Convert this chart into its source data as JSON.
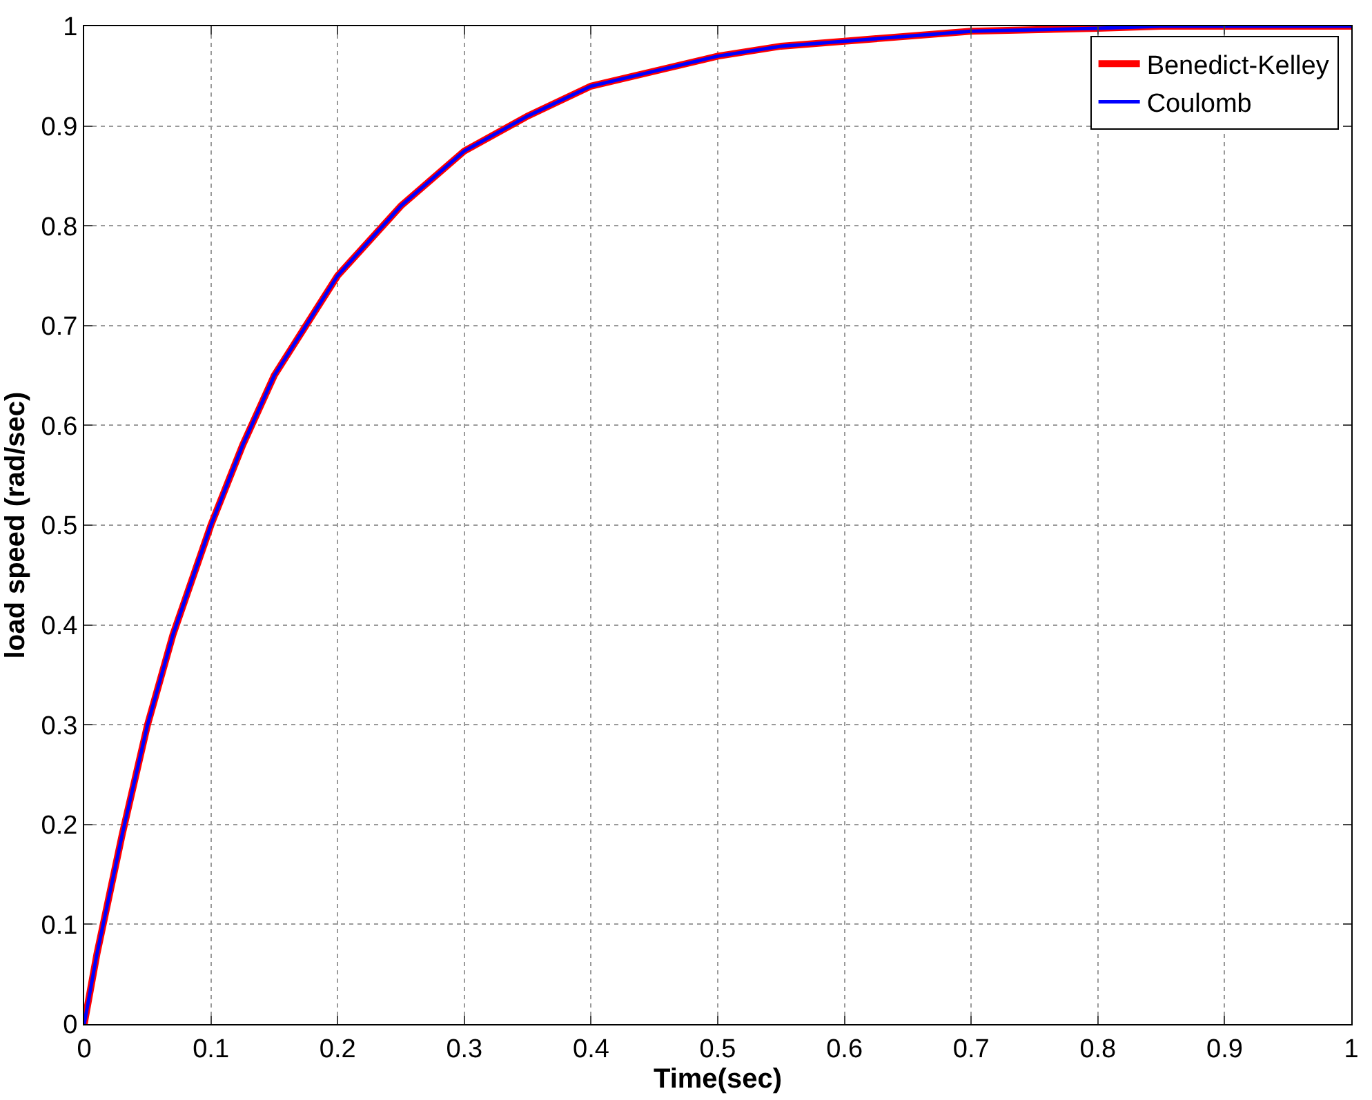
{
  "chart_data": {
    "type": "line",
    "xlabel": "Time(sec)",
    "ylabel": "load speed (rad/sec)",
    "x": [
      0,
      0.01,
      0.02,
      0.03,
      0.05,
      0.07,
      0.1,
      0.125,
      0.15,
      0.175,
      0.2,
      0.25,
      0.3,
      0.35,
      0.4,
      0.45,
      0.5,
      0.55,
      0.6,
      0.7,
      0.8,
      0.85,
      1
    ],
    "series": [
      {
        "name": "Benedict-Kelley",
        "color": "#ff0000",
        "values": [
          0,
          0.07,
          0.13,
          0.19,
          0.3,
          0.39,
          0.5,
          0.58,
          0.65,
          0.7,
          0.75,
          0.82,
          0.875,
          0.91,
          0.94,
          0.955,
          0.97,
          0.98,
          0.985,
          0.995,
          0.998,
          1,
          1
        ]
      },
      {
        "name": "Coulomb",
        "color": "#0000ff",
        "values": [
          0,
          0.07,
          0.13,
          0.19,
          0.3,
          0.39,
          0.5,
          0.58,
          0.65,
          0.7,
          0.75,
          0.82,
          0.875,
          0.91,
          0.94,
          0.955,
          0.97,
          0.98,
          0.985,
          0.995,
          0.998,
          1,
          1
        ]
      }
    ],
    "xlim": [
      0,
      1
    ],
    "ylim": [
      0,
      1
    ],
    "xticks": [
      0,
      0.1,
      0.2,
      0.3,
      0.4,
      0.5,
      0.6,
      0.7,
      0.8,
      0.9,
      1
    ],
    "yticks": [
      0,
      0.1,
      0.2,
      0.3,
      0.4,
      0.5,
      0.6,
      0.7,
      0.8,
      0.9,
      1
    ],
    "grid": true,
    "legend": "top right",
    "line_style": "solid",
    "marker": "none"
  }
}
